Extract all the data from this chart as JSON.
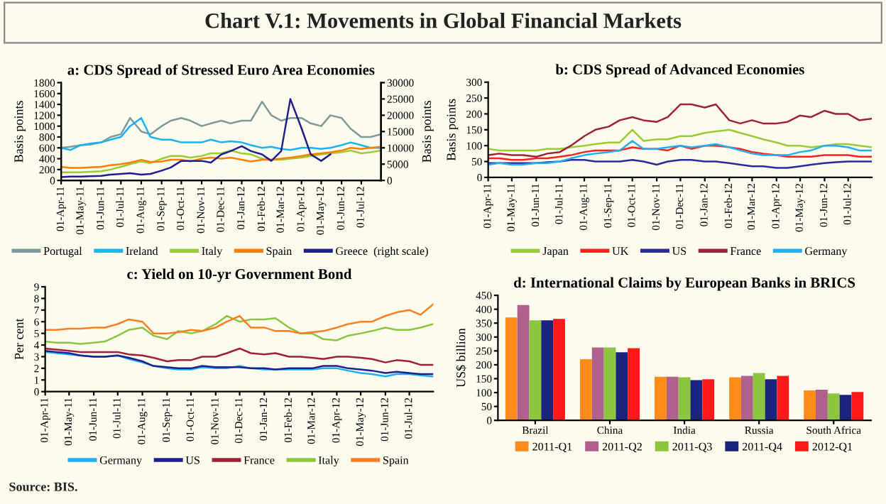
{
  "chart_data": [
    {
      "type": "line",
      "title": "a: CDS Spread of Stressed Euro Area Economies",
      "ylabel": "Basis points",
      "y2label": "Basis points",
      "annotations": [
        "Chart V.1: Movements in Global Financial Markets"
      ],
      "x": [
        "2011-04-01",
        "2011-04-15",
        "2011-05-01",
        "2011-05-15",
        "2011-06-01",
        "2011-06-15",
        "2011-07-01",
        "2011-07-15",
        "2011-08-01",
        "2011-08-15",
        "2011-09-01",
        "2011-09-15",
        "2011-10-01",
        "2011-10-15",
        "2011-11-01",
        "2011-11-15",
        "2011-12-01",
        "2011-12-15",
        "2012-01-01",
        "2012-01-15",
        "2012-02-01",
        "2012-02-15",
        "2012-03-01",
        "2012-03-15",
        "2012-04-01",
        "2012-04-15",
        "2012-05-01",
        "2012-05-15",
        "2012-06-01",
        "2012-06-15",
        "2012-07-01",
        "2012-07-15",
        "2012-07-31"
      ],
      "series": [
        {
          "name": "Portugal",
          "color": "#7f9a9a",
          "values": [
            600,
            620,
            650,
            660,
            700,
            800,
            850,
            1150,
            900,
            850,
            1000,
            1100,
            1150,
            1100,
            1000,
            1050,
            1100,
            1050,
            1100,
            1100,
            1450,
            1200,
            1100,
            1150,
            1150,
            1050,
            1000,
            1200,
            1150,
            950,
            800,
            800,
            850
          ]
        },
        {
          "name": "Ireland",
          "color": "#1ab2f0",
          "values": [
            600,
            560,
            650,
            680,
            700,
            750,
            800,
            1000,
            1150,
            800,
            750,
            750,
            700,
            700,
            700,
            750,
            700,
            720,
            700,
            650,
            600,
            620,
            580,
            560,
            600,
            600,
            580,
            600,
            650,
            700,
            650,
            600,
            600
          ]
        },
        {
          "name": "Italy",
          "color": "#9acd32",
          "values": [
            150,
            150,
            150,
            160,
            170,
            200,
            250,
            300,
            350,
            320,
            400,
            450,
            450,
            420,
            450,
            500,
            500,
            550,
            500,
            480,
            400,
            380,
            380,
            400,
            420,
            450,
            480,
            500,
            520,
            550,
            500,
            520,
            550
          ]
        },
        {
          "name": "Spain",
          "color": "#ff7f00",
          "values": [
            250,
            230,
            230,
            240,
            250,
            280,
            300,
            330,
            380,
            340,
            350,
            380,
            380,
            350,
            400,
            420,
            400,
            420,
            380,
            350,
            380,
            380,
            400,
            420,
            450,
            480,
            500,
            520,
            550,
            600,
            580,
            600,
            620
          ]
        },
        {
          "name": "Greece  (right scale)",
          "color": "#1f1f8f",
          "axis": "y2",
          "values": [
            1000,
            1200,
            1200,
            1300,
            1400,
            1800,
            2000,
            2200,
            1800,
            2000,
            3000,
            4000,
            6000,
            6000,
            6000,
            5500,
            8000,
            9000,
            10500,
            9000,
            8000,
            6000,
            9000,
            25000,
            16000,
            8000,
            6000,
            8000,
            null,
            null,
            null,
            null,
            null
          ]
        }
      ],
      "xlim": [
        "2011-04-01",
        "2012-07-31"
      ],
      "xticks": [
        {
          "value": "2011-04-01",
          "label": "01-Apr-11"
        },
        {
          "value": "2011-05-01",
          "label": "01-May-11"
        },
        {
          "value": "2011-06-01",
          "label": "01-Jun-11"
        },
        {
          "value": "2011-07-01",
          "label": "01-Jul-11"
        },
        {
          "value": "2011-08-01",
          "label": "01-Aug-11"
        },
        {
          "value": "2011-09-01",
          "label": "01-Sep-11"
        },
        {
          "value": "2011-10-01",
          "label": "01-Oct-11"
        },
        {
          "value": "2011-11-01",
          "label": "01-Nov-11"
        },
        {
          "value": "2011-12-01",
          "label": "01-Dec-11"
        },
        {
          "value": "2012-01-01",
          "label": "01-Jan-12"
        },
        {
          "value": "2012-02-01",
          "label": "01-Feb-12"
        },
        {
          "value": "2012-03-01",
          "label": "01-Mar-12"
        },
        {
          "value": "2012-04-01",
          "label": "01-Apr-12"
        },
        {
          "value": "2012-05-01",
          "label": "01-May-12"
        },
        {
          "value": "2012-06-01",
          "label": "01-Jun-12"
        },
        {
          "value": "2012-07-01",
          "label": "01-Jul-12"
        }
      ],
      "ylim": [
        0,
        1800
      ],
      "yticks": [
        0,
        200,
        400,
        600,
        800,
        1000,
        1200,
        1400,
        1600,
        1800
      ],
      "y2lim": [
        0,
        30000
      ],
      "y2ticks": [
        0,
        5000,
        10000,
        15000,
        20000,
        25000,
        30000
      ],
      "legend": "bottom",
      "grid": false
    },
    {
      "type": "line",
      "title": "b: CDS Spread of Advanced Economies",
      "ylabel": "Basis points",
      "x": [
        "2011-04-01",
        "2011-04-15",
        "2011-05-01",
        "2011-05-15",
        "2011-06-01",
        "2011-06-15",
        "2011-07-01",
        "2011-07-15",
        "2011-08-01",
        "2011-08-15",
        "2011-09-01",
        "2011-09-15",
        "2011-10-01",
        "2011-10-15",
        "2011-11-01",
        "2011-11-15",
        "2011-12-01",
        "2011-12-15",
        "2012-01-01",
        "2012-01-15",
        "2012-02-01",
        "2012-02-15",
        "2012-03-01",
        "2012-03-15",
        "2012-04-01",
        "2012-04-15",
        "2012-05-01",
        "2012-05-15",
        "2012-06-01",
        "2012-06-15",
        "2012-07-01",
        "2012-07-15",
        "2012-07-31"
      ],
      "series": [
        {
          "name": "Japan",
          "color": "#9acd32",
          "values": [
            90,
            85,
            85,
            85,
            85,
            90,
            90,
            95,
            100,
            105,
            110,
            110,
            150,
            115,
            120,
            120,
            130,
            130,
            140,
            145,
            150,
            140,
            130,
            120,
            110,
            100,
            100,
            95,
            100,
            105,
            105,
            100,
            95
          ]
        },
        {
          "name": "UK",
          "color": "#ff2020",
          "values": [
            60,
            60,
            55,
            55,
            60,
            60,
            65,
            70,
            80,
            85,
            85,
            85,
            95,
            90,
            90,
            85,
            100,
            90,
            100,
            100,
            95,
            90,
            80,
            75,
            70,
            65,
            65,
            65,
            70,
            70,
            70,
            65,
            65
          ]
        },
        {
          "name": "US",
          "color": "#2a2a9a",
          "values": [
            45,
            45,
            45,
            45,
            45,
            48,
            50,
            55,
            55,
            50,
            50,
            50,
            55,
            50,
            40,
            50,
            55,
            55,
            50,
            50,
            45,
            40,
            35,
            35,
            30,
            30,
            35,
            40,
            45,
            48,
            50,
            50,
            50
          ]
        },
        {
          "name": "France",
          "color": "#a0203a",
          "values": [
            70,
            75,
            70,
            70,
            65,
            75,
            80,
            100,
            130,
            150,
            160,
            180,
            190,
            180,
            175,
            190,
            230,
            230,
            220,
            230,
            180,
            170,
            180,
            170,
            170,
            175,
            195,
            190,
            210,
            200,
            200,
            180,
            185
          ]
        },
        {
          "name": "Germany",
          "color": "#20b0f0",
          "values": [
            40,
            45,
            40,
            40,
            45,
            45,
            50,
            60,
            70,
            75,
            80,
            85,
            115,
            90,
            90,
            95,
            100,
            95,
            100,
            105,
            95,
            85,
            75,
            70,
            70,
            70,
            80,
            85,
            100,
            100,
            95,
            85,
            85
          ]
        }
      ],
      "xlim": [
        "2011-04-01",
        "2012-07-31"
      ],
      "xticks": [
        {
          "value": "2011-04-01",
          "label": "01-Apr-11"
        },
        {
          "value": "2011-05-01",
          "label": "01-May-11"
        },
        {
          "value": "2011-06-01",
          "label": "01-Jun-11"
        },
        {
          "value": "2011-07-01",
          "label": "01-Jul-11"
        },
        {
          "value": "2011-08-01",
          "label": "01-Aug-11"
        },
        {
          "value": "2011-09-01",
          "label": "01-Sep-11"
        },
        {
          "value": "2011-10-01",
          "label": "01-Oct-11"
        },
        {
          "value": "2011-11-01",
          "label": "01-Nov-11"
        },
        {
          "value": "2011-12-01",
          "label": "01-Dec-11"
        },
        {
          "value": "2012-01-01",
          "label": "01-Jan-12"
        },
        {
          "value": "2012-02-01",
          "label": "01-Feb-12"
        },
        {
          "value": "2012-03-01",
          "label": "01-Mar-12"
        },
        {
          "value": "2012-04-01",
          "label": "01-Apr-12"
        },
        {
          "value": "2012-05-01",
          "label": "01-May-12"
        },
        {
          "value": "2012-06-01",
          "label": "01-Jun-12"
        },
        {
          "value": "2012-07-01",
          "label": "01-Jul-12"
        }
      ],
      "ylim": [
        0,
        300
      ],
      "yticks": [
        0,
        50,
        100,
        150,
        200,
        250,
        300
      ],
      "legend": "bottom",
      "grid": false
    },
    {
      "type": "line",
      "title": "c: Yield on 10-yr Government Bond",
      "ylabel": "Per cent",
      "x": [
        "2011-04-01",
        "2011-04-15",
        "2011-05-01",
        "2011-05-15",
        "2011-06-01",
        "2011-06-15",
        "2011-07-01",
        "2011-07-15",
        "2011-08-01",
        "2011-08-15",
        "2011-09-01",
        "2011-09-15",
        "2011-10-01",
        "2011-10-15",
        "2011-11-01",
        "2011-11-15",
        "2011-12-01",
        "2011-12-15",
        "2012-01-01",
        "2012-01-15",
        "2012-02-01",
        "2012-02-15",
        "2012-03-01",
        "2012-03-15",
        "2012-04-01",
        "2012-04-15",
        "2012-05-01",
        "2012-05-15",
        "2012-06-01",
        "2012-06-15",
        "2012-07-01",
        "2012-07-15",
        "2012-07-31"
      ],
      "series": [
        {
          "name": "Germany",
          "color": "#20b0f0",
          "values": [
            3.4,
            3.3,
            3.2,
            3.1,
            3.0,
            3.0,
            3.1,
            2.8,
            2.5,
            2.2,
            2.0,
            1.9,
            1.9,
            2.1,
            2.0,
            2.0,
            2.2,
            2.0,
            1.9,
            1.9,
            1.9,
            1.9,
            1.9,
            2.0,
            2.0,
            1.8,
            1.6,
            1.5,
            1.3,
            1.5,
            1.5,
            1.4,
            1.3
          ]
        },
        {
          "name": "US",
          "color": "#1f1f8f",
          "values": [
            3.5,
            3.4,
            3.3,
            3.1,
            3.0,
            3.0,
            3.1,
            2.9,
            2.6,
            2.2,
            2.1,
            2.0,
            2.0,
            2.2,
            2.1,
            2.1,
            2.1,
            2.0,
            2.0,
            1.9,
            2.0,
            2.0,
            2.0,
            2.2,
            2.2,
            2.0,
            1.9,
            1.8,
            1.6,
            1.7,
            1.6,
            1.5,
            1.5
          ]
        },
        {
          "name": "France",
          "color": "#a0203a",
          "values": [
            3.7,
            3.6,
            3.5,
            3.4,
            3.4,
            3.4,
            3.4,
            3.2,
            3.1,
            2.9,
            2.6,
            2.7,
            2.7,
            3.0,
            3.0,
            3.3,
            3.7,
            3.3,
            3.2,
            3.3,
            3.0,
            3.0,
            2.9,
            2.8,
            3.0,
            3.0,
            2.9,
            2.8,
            2.5,
            2.7,
            2.6,
            2.3,
            2.3
          ]
        },
        {
          "name": "Italy",
          "color": "#8cc63f",
          "values": [
            4.3,
            4.2,
            4.2,
            4.1,
            4.2,
            4.3,
            4.8,
            5.3,
            5.5,
            4.8,
            4.5,
            5.2,
            5.0,
            5.2,
            5.8,
            6.5,
            6.0,
            6.2,
            6.2,
            6.3,
            5.5,
            5.0,
            5.0,
            4.5,
            4.4,
            4.8,
            5.0,
            5.2,
            5.5,
            5.3,
            5.3,
            5.5,
            5.8
          ]
        },
        {
          "name": "Spain",
          "color": "#ff7f20",
          "values": [
            5.3,
            5.3,
            5.4,
            5.4,
            5.5,
            5.5,
            5.8,
            6.2,
            6.0,
            5.0,
            5.0,
            5.1,
            5.3,
            5.2,
            5.5,
            6.0,
            6.5,
            5.5,
            5.5,
            5.2,
            5.2,
            5.0,
            5.1,
            5.2,
            5.5,
            5.8,
            6.0,
            6.0,
            6.5,
            6.8,
            7.0,
            6.6,
            7.5
          ]
        }
      ],
      "xlim": [
        "2011-04-01",
        "2012-07-31"
      ],
      "xticks": [
        {
          "value": "2011-04-01",
          "label": "01-Apr-11"
        },
        {
          "value": "2011-05-01",
          "label": "01-May-11"
        },
        {
          "value": "2011-06-01",
          "label": "01-Jun-11"
        },
        {
          "value": "2011-07-01",
          "label": "01-Jul-11"
        },
        {
          "value": "2011-08-01",
          "label": "01-Aug-11"
        },
        {
          "value": "2011-09-01",
          "label": "01-Sep-11"
        },
        {
          "value": "2011-10-01",
          "label": "01-Oct-11"
        },
        {
          "value": "2011-11-01",
          "label": "01-Nov-11"
        },
        {
          "value": "2011-12-01",
          "label": "01-Dec-11"
        },
        {
          "value": "2012-01-01",
          "label": "01-Jan-12"
        },
        {
          "value": "2012-02-01",
          "label": "01-Feb-12"
        },
        {
          "value": "2012-03-01",
          "label": "01-Mar-12"
        },
        {
          "value": "2012-04-01",
          "label": "01-Apr-12"
        },
        {
          "value": "2012-05-01",
          "label": "01-May-12"
        },
        {
          "value": "2012-06-01",
          "label": "01-Jun-12"
        },
        {
          "value": "2012-07-01",
          "label": "01-Jul-12"
        }
      ],
      "ylim": [
        0,
        9
      ],
      "yticks": [
        0,
        1,
        2,
        3,
        4,
        5,
        6,
        7,
        8,
        9
      ],
      "legend": "bottom",
      "grid": false
    },
    {
      "type": "bar",
      "title": "d: International Claims by European Banks in BRICS",
      "ylabel": "US$ billion",
      "annotations": [
        "Source: BIS."
      ],
      "categories": [
        "Brazil",
        "China",
        "India",
        "Russia",
        "South Africa"
      ],
      "series": [
        {
          "name": "2011-Q1",
          "color": "#ff8c1a",
          "values": [
            370,
            220,
            157,
            155,
            108
          ]
        },
        {
          "name": "2011-Q2",
          "color": "#b0608c",
          "values": [
            415,
            262,
            157,
            160,
            110
          ]
        },
        {
          "name": "2011-Q3",
          "color": "#8cc63f",
          "values": [
            360,
            262,
            155,
            170,
            97
          ]
        },
        {
          "name": "2011-Q4",
          "color": "#1a237e",
          "values": [
            360,
            245,
            145,
            148,
            92
          ]
        },
        {
          "name": "2012-Q1",
          "color": "#ff1a1a",
          "values": [
            365,
            260,
            148,
            160,
            102
          ]
        }
      ],
      "ylim": [
        0,
        450
      ],
      "yticks": [
        0,
        50,
        100,
        150,
        200,
        250,
        300,
        350,
        400,
        450
      ],
      "legend": "bottom",
      "grid": false
    }
  ]
}
